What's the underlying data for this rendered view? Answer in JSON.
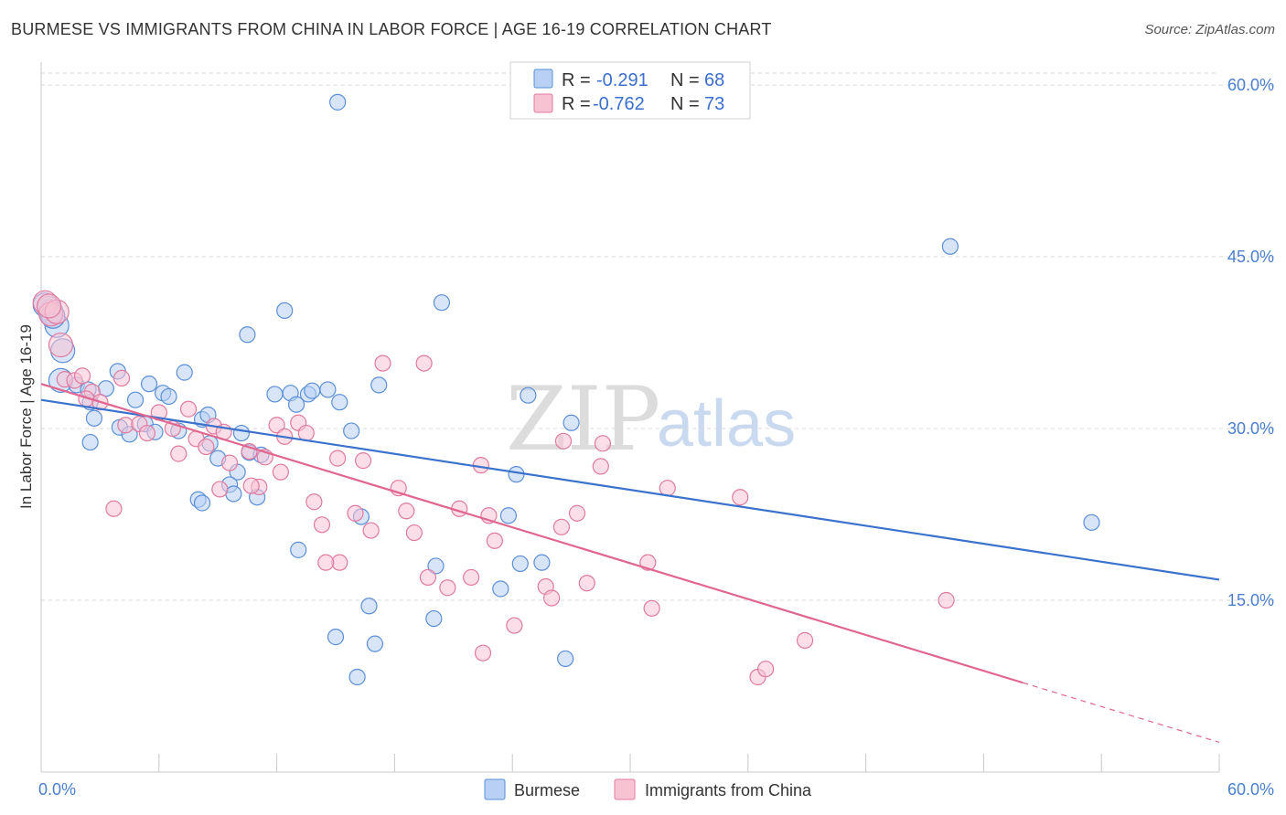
{
  "header": {
    "title": "BURMESE VS IMMIGRANTS FROM CHINA IN LABOR FORCE | AGE 16-19 CORRELATION CHART",
    "source": "Source: ZipAtlas.com"
  },
  "watermark": {
    "zip": "ZIP",
    "atlas": "atlas"
  },
  "colors": {
    "burmese_fill": "#b8d0f4",
    "burmese_stroke": "#5a8fd8",
    "burmese_line": "#3a72cc",
    "china_fill": "#f7c3d3",
    "china_stroke": "#e07aa0",
    "china_line": "#e0668f",
    "grid": "#d9d9d9"
  },
  "chart_data": {
    "type": "scatter",
    "title": "BURMESE VS IMMIGRANTS FROM CHINA IN LABOR FORCE | AGE 16-19 CORRELATION CHART",
    "xlabel": "",
    "ylabel": "In Labor Force | Age 16-19",
    "xlim": [
      0,
      60
    ],
    "ylim": [
      0,
      62
    ],
    "x_tick_labels": [
      "0.0%",
      "60.0%"
    ],
    "y_ticks": [
      15,
      30,
      45,
      60
    ],
    "y_tick_labels": [
      "15.0%",
      "30.0%",
      "45.0%",
      "60.0%"
    ],
    "grid": true,
    "legend": {
      "placement": "top-center",
      "entries": [
        {
          "r_label": "R =",
          "r_value": "-0.291",
          "n_label": "N =",
          "n_value": "68"
        },
        {
          "r_label": "R =",
          "r_value": "-0.762",
          "n_label": "N =",
          "n_value": "73"
        }
      ]
    },
    "bottom_legend": [
      "Burmese",
      "Immigrants from China"
    ],
    "series": [
      {
        "name": "Burmese",
        "trend": {
          "x": [
            0,
            60
          ],
          "y": [
            32.5,
            16.8
          ]
        },
        "points": [
          [
            0.4,
            40.5
          ],
          [
            0.5,
            40.2
          ],
          [
            0.8,
            39.0
          ],
          [
            1.1,
            36.8
          ],
          [
            1.0,
            34.2
          ],
          [
            1.8,
            33.8
          ],
          [
            2.4,
            33.4
          ],
          [
            2.5,
            32.3
          ],
          [
            3.3,
            33.5
          ],
          [
            3.9,
            35.0
          ],
          [
            4.8,
            32.5
          ],
          [
            5.5,
            33.9
          ],
          [
            6.2,
            33.1
          ],
          [
            6.5,
            32.8
          ],
          [
            7.3,
            34.9
          ],
          [
            2.7,
            30.9
          ],
          [
            4.0,
            30.1
          ],
          [
            4.5,
            29.5
          ],
          [
            5.3,
            30.4
          ],
          [
            5.8,
            29.7
          ],
          [
            7.0,
            29.8
          ],
          [
            8.2,
            30.8
          ],
          [
            8.5,
            31.2
          ],
          [
            8.6,
            28.7
          ],
          [
            10.2,
            29.6
          ],
          [
            10.6,
            27.9
          ],
          [
            11.2,
            27.7
          ],
          [
            2.5,
            28.8
          ],
          [
            9.0,
            27.4
          ],
          [
            10.0,
            26.2
          ],
          [
            11.9,
            33.0
          ],
          [
            12.7,
            33.1
          ],
          [
            13.0,
            32.1
          ],
          [
            13.6,
            33.0
          ],
          [
            13.8,
            33.3
          ],
          [
            14.6,
            33.4
          ],
          [
            15.2,
            32.3
          ],
          [
            15.8,
            29.8
          ],
          [
            16.3,
            22.3
          ],
          [
            8.0,
            23.8
          ],
          [
            8.2,
            23.5
          ],
          [
            9.6,
            25.1
          ],
          [
            9.8,
            24.3
          ],
          [
            11.0,
            24.0
          ],
          [
            13.1,
            19.4
          ],
          [
            17.2,
            33.8
          ],
          [
            20.4,
            41.0
          ],
          [
            24.2,
            26.0
          ],
          [
            24.8,
            32.9
          ],
          [
            27.0,
            30.5
          ],
          [
            10.5,
            38.2
          ],
          [
            12.4,
            40.3
          ],
          [
            15.1,
            58.5
          ],
          [
            46.3,
            45.9
          ],
          [
            53.5,
            21.8
          ],
          [
            23.8,
            22.4
          ],
          [
            24.4,
            18.2
          ],
          [
            25.5,
            18.3
          ],
          [
            20.1,
            18.0
          ],
          [
            23.4,
            16.0
          ],
          [
            16.7,
            14.5
          ],
          [
            20.0,
            13.4
          ],
          [
            15.0,
            11.8
          ],
          [
            17.0,
            11.2
          ],
          [
            26.7,
            9.9
          ],
          [
            16.1,
            8.3
          ],
          [
            0.2,
            40.8
          ],
          [
            0.6,
            39.8
          ]
        ]
      },
      {
        "name": "Immigrants from China",
        "trend": {
          "x": [
            0,
            50
          ],
          "y": [
            33.9,
            7.8
          ]
        },
        "trend_dashed": {
          "x": [
            50,
            60
          ],
          "y": [
            7.8,
            2.6
          ]
        },
        "points": [
          [
            0.2,
            41.0
          ],
          [
            0.5,
            40.0
          ],
          [
            1.0,
            37.3
          ],
          [
            1.2,
            34.3
          ],
          [
            1.7,
            34.2
          ],
          [
            2.1,
            34.6
          ],
          [
            2.6,
            33.2
          ],
          [
            2.3,
            32.6
          ],
          [
            3.0,
            32.3
          ],
          [
            4.1,
            34.4
          ],
          [
            4.3,
            30.3
          ],
          [
            5.0,
            30.4
          ],
          [
            5.4,
            29.6
          ],
          [
            6.0,
            31.4
          ],
          [
            6.7,
            30.0
          ],
          [
            7.5,
            31.7
          ],
          [
            7.0,
            27.8
          ],
          [
            7.9,
            29.1
          ],
          [
            8.4,
            28.4
          ],
          [
            8.8,
            30.2
          ],
          [
            9.3,
            29.7
          ],
          [
            9.6,
            27.0
          ],
          [
            10.6,
            28.0
          ],
          [
            11.4,
            27.5
          ],
          [
            12.0,
            30.3
          ],
          [
            12.4,
            29.3
          ],
          [
            13.1,
            30.5
          ],
          [
            13.5,
            29.6
          ],
          [
            3.7,
            23.0
          ],
          [
            9.1,
            24.7
          ],
          [
            11.1,
            24.9
          ],
          [
            12.2,
            26.2
          ],
          [
            13.9,
            23.6
          ],
          [
            14.3,
            21.6
          ],
          [
            15.1,
            27.4
          ],
          [
            16.0,
            22.6
          ],
          [
            16.4,
            27.2
          ],
          [
            16.8,
            21.1
          ],
          [
            17.4,
            35.7
          ],
          [
            18.2,
            24.8
          ],
          [
            18.6,
            22.8
          ],
          [
            19.0,
            20.9
          ],
          [
            19.5,
            35.7
          ],
          [
            19.7,
            17.0
          ],
          [
            20.7,
            16.1
          ],
          [
            21.3,
            23.0
          ],
          [
            21.9,
            17.0
          ],
          [
            22.4,
            26.8
          ],
          [
            22.8,
            22.4
          ],
          [
            23.1,
            20.2
          ],
          [
            25.7,
            16.2
          ],
          [
            26.0,
            15.2
          ],
          [
            26.5,
            21.4
          ],
          [
            27.3,
            22.6
          ],
          [
            27.8,
            16.5
          ],
          [
            28.5,
            26.7
          ],
          [
            28.6,
            28.7
          ],
          [
            30.9,
            18.3
          ],
          [
            31.1,
            14.3
          ],
          [
            31.9,
            24.8
          ],
          [
            35.6,
            24.0
          ],
          [
            36.5,
            8.3
          ],
          [
            36.9,
            9.0
          ],
          [
            38.9,
            11.5
          ],
          [
            46.1,
            15.0
          ],
          [
            15.2,
            18.3
          ],
          [
            14.5,
            18.3
          ],
          [
            24.1,
            12.8
          ],
          [
            22.5,
            10.4
          ],
          [
            26.6,
            28.9
          ],
          [
            0.8,
            40.2
          ],
          [
            0.4,
            40.7
          ],
          [
            10.7,
            25.0
          ]
        ]
      }
    ]
  }
}
